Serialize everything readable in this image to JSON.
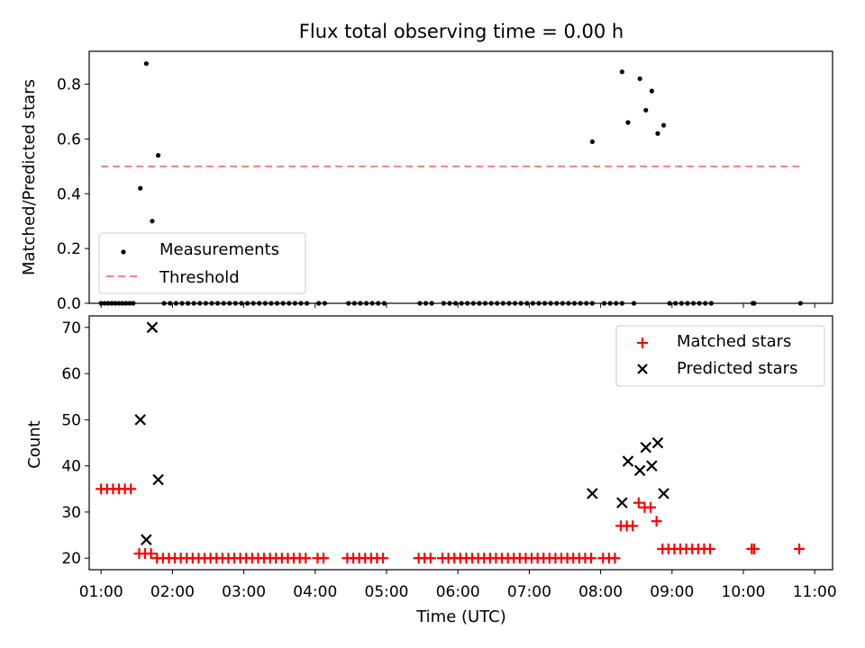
{
  "title": "Flux total observing time = 0.00 h",
  "chart_data": [
    {
      "type": "scatter",
      "ylabel": "Matched/Predicted stars",
      "xlim": [
        "00:50",
        "11:15"
      ],
      "ylim": [
        0,
        0.92
      ],
      "yticks": [
        0.0,
        0.2,
        0.4,
        0.6,
        0.8
      ],
      "ytick_labels": [
        "0.0",
        "0.2",
        "0.4",
        "0.6",
        "0.8"
      ],
      "legend_position": "lower-left",
      "series": [
        {
          "name": "Measurements",
          "marker": "dot",
          "color": "#000000",
          "points": [
            [
              "01:00",
              0
            ],
            [
              "01:03",
              0
            ],
            [
              "01:06",
              0
            ],
            [
              "01:09",
              0
            ],
            [
              "01:12",
              0
            ],
            [
              "01:15",
              0
            ],
            [
              "01:18",
              0
            ],
            [
              "01:21",
              0
            ],
            [
              "01:24",
              0
            ],
            [
              "01:27",
              0
            ],
            [
              "01:33",
              0.42
            ],
            [
              "01:38",
              0.875
            ],
            [
              "01:43",
              0.3
            ],
            [
              "01:48",
              0.54
            ],
            [
              "01:53",
              0
            ],
            [
              "01:58",
              0
            ],
            [
              "02:03",
              0
            ],
            [
              "02:08",
              0
            ],
            [
              "02:13",
              0
            ],
            [
              "02:18",
              0
            ],
            [
              "02:23",
              0
            ],
            [
              "02:28",
              0
            ],
            [
              "02:33",
              0
            ],
            [
              "02:38",
              0
            ],
            [
              "02:43",
              0
            ],
            [
              "02:48",
              0
            ],
            [
              "02:53",
              0
            ],
            [
              "02:58",
              0
            ],
            [
              "03:03",
              0
            ],
            [
              "03:08",
              0
            ],
            [
              "03:13",
              0
            ],
            [
              "03:18",
              0
            ],
            [
              "03:23",
              0
            ],
            [
              "03:28",
              0
            ],
            [
              "03:33",
              0
            ],
            [
              "03:38",
              0
            ],
            [
              "03:43",
              0
            ],
            [
              "03:48",
              0
            ],
            [
              "03:53",
              0
            ],
            [
              "04:03",
              0
            ],
            [
              "04:08",
              0
            ],
            [
              "04:28",
              0
            ],
            [
              "04:33",
              0
            ],
            [
              "04:38",
              0
            ],
            [
              "04:43",
              0
            ],
            [
              "04:48",
              0
            ],
            [
              "04:53",
              0
            ],
            [
              "04:58",
              0
            ],
            [
              "05:28",
              0
            ],
            [
              "05:33",
              0
            ],
            [
              "05:38",
              0
            ],
            [
              "05:48",
              0
            ],
            [
              "05:53",
              0
            ],
            [
              "05:58",
              0
            ],
            [
              "06:03",
              0
            ],
            [
              "06:08",
              0
            ],
            [
              "06:13",
              0
            ],
            [
              "06:18",
              0
            ],
            [
              "06:23",
              0
            ],
            [
              "06:28",
              0
            ],
            [
              "06:33",
              0
            ],
            [
              "06:38",
              0
            ],
            [
              "06:43",
              0
            ],
            [
              "06:48",
              0
            ],
            [
              "06:53",
              0
            ],
            [
              "06:58",
              0
            ],
            [
              "07:03",
              0
            ],
            [
              "07:08",
              0
            ],
            [
              "07:13",
              0
            ],
            [
              "07:18",
              0
            ],
            [
              "07:23",
              0
            ],
            [
              "07:28",
              0
            ],
            [
              "07:33",
              0
            ],
            [
              "07:38",
              0
            ],
            [
              "07:43",
              0
            ],
            [
              "07:48",
              0
            ],
            [
              "07:53",
              0
            ],
            [
              "08:03",
              0
            ],
            [
              "08:08",
              0
            ],
            [
              "08:13",
              0
            ],
            [
              "08:18",
              0
            ],
            [
              "07:53",
              0.59
            ],
            [
              "08:18",
              0.845
            ],
            [
              "08:23",
              0.66
            ],
            [
              "08:28",
              0
            ],
            [
              "08:33",
              0.82
            ],
            [
              "08:38",
              0.705
            ],
            [
              "08:43",
              0.775
            ],
            [
              "08:48",
              0.62
            ],
            [
              "08:53",
              0.65
            ],
            [
              "08:58",
              0
            ],
            [
              "09:03",
              0
            ],
            [
              "09:08",
              0
            ],
            [
              "09:13",
              0
            ],
            [
              "09:18",
              0
            ],
            [
              "09:23",
              0
            ],
            [
              "09:28",
              0
            ],
            [
              "09:33",
              0
            ],
            [
              "10:08",
              0
            ],
            [
              "10:09",
              0
            ],
            [
              "10:48",
              0
            ]
          ]
        },
        {
          "name": "Threshold",
          "marker": "dashed-line",
          "color": "#ff7f7f",
          "x": [
            "01:00",
            "10:48"
          ],
          "y": [
            0.5,
            0.5
          ]
        }
      ]
    },
    {
      "type": "scatter",
      "xlabel": "Time (UTC)",
      "ylabel": "Count",
      "xlim": [
        "00:50",
        "11:15"
      ],
      "ylim": [
        17.5,
        72.5
      ],
      "xticks": [
        "01:00",
        "02:00",
        "03:00",
        "04:00",
        "05:00",
        "06:00",
        "07:00",
        "08:00",
        "09:00",
        "10:00",
        "11:00"
      ],
      "yticks": [
        20,
        30,
        40,
        50,
        60,
        70
      ],
      "ytick_labels": [
        "20",
        "30",
        "40",
        "50",
        "60",
        "70"
      ],
      "legend_position": "upper-right",
      "series": [
        {
          "name": "Matched stars",
          "marker": "plus",
          "color": "#ff0000",
          "points": [
            [
              "01:00",
              35
            ],
            [
              "01:05",
              35
            ],
            [
              "01:10",
              35
            ],
            [
              "01:15",
              35
            ],
            [
              "01:20",
              35
            ],
            [
              "01:25",
              35
            ],
            [
              "01:32",
              21
            ],
            [
              "01:37",
              21
            ],
            [
              "01:42",
              21
            ],
            [
              "01:47",
              20
            ],
            [
              "01:52",
              20
            ],
            [
              "01:57",
              20
            ],
            [
              "02:02",
              20
            ],
            [
              "02:07",
              20
            ],
            [
              "02:12",
              20
            ],
            [
              "02:17",
              20
            ],
            [
              "02:22",
              20
            ],
            [
              "02:27",
              20
            ],
            [
              "02:32",
              20
            ],
            [
              "02:37",
              20
            ],
            [
              "02:42",
              20
            ],
            [
              "02:47",
              20
            ],
            [
              "02:52",
              20
            ],
            [
              "02:57",
              20
            ],
            [
              "03:02",
              20
            ],
            [
              "03:07",
              20
            ],
            [
              "03:12",
              20
            ],
            [
              "03:17",
              20
            ],
            [
              "03:22",
              20
            ],
            [
              "03:27",
              20
            ],
            [
              "03:32",
              20
            ],
            [
              "03:37",
              20
            ],
            [
              "03:42",
              20
            ],
            [
              "03:47",
              20
            ],
            [
              "03:52",
              20
            ],
            [
              "04:02",
              20
            ],
            [
              "04:07",
              20
            ],
            [
              "04:27",
              20
            ],
            [
              "04:32",
              20
            ],
            [
              "04:37",
              20
            ],
            [
              "04:42",
              20
            ],
            [
              "04:47",
              20
            ],
            [
              "04:52",
              20
            ],
            [
              "04:57",
              20
            ],
            [
              "05:27",
              20
            ],
            [
              "05:32",
              20
            ],
            [
              "05:37",
              20
            ],
            [
              "05:47",
              20
            ],
            [
              "05:52",
              20
            ],
            [
              "05:57",
              20
            ],
            [
              "06:02",
              20
            ],
            [
              "06:07",
              20
            ],
            [
              "06:12",
              20
            ],
            [
              "06:17",
              20
            ],
            [
              "06:22",
              20
            ],
            [
              "06:27",
              20
            ],
            [
              "06:32",
              20
            ],
            [
              "06:37",
              20
            ],
            [
              "06:42",
              20
            ],
            [
              "06:47",
              20
            ],
            [
              "06:52",
              20
            ],
            [
              "06:57",
              20
            ],
            [
              "07:02",
              20
            ],
            [
              "07:07",
              20
            ],
            [
              "07:12",
              20
            ],
            [
              "07:17",
              20
            ],
            [
              "07:22",
              20
            ],
            [
              "07:27",
              20
            ],
            [
              "07:32",
              20
            ],
            [
              "07:37",
              20
            ],
            [
              "07:42",
              20
            ],
            [
              "07:47",
              20
            ],
            [
              "07:52",
              20
            ],
            [
              "08:02",
              20
            ],
            [
              "08:07",
              20
            ],
            [
              "08:12",
              20
            ],
            [
              "08:17",
              27
            ],
            [
              "08:22",
              27
            ],
            [
              "08:27",
              27
            ],
            [
              "08:32",
              32
            ],
            [
              "08:37",
              31
            ],
            [
              "08:42",
              31
            ],
            [
              "08:47",
              28
            ],
            [
              "08:52",
              22
            ],
            [
              "08:57",
              22
            ],
            [
              "09:02",
              22
            ],
            [
              "09:07",
              22
            ],
            [
              "09:12",
              22
            ],
            [
              "09:17",
              22
            ],
            [
              "09:22",
              22
            ],
            [
              "09:27",
              22
            ],
            [
              "09:32",
              22
            ],
            [
              "10:07",
              22
            ],
            [
              "10:09",
              22
            ],
            [
              "10:47",
              22
            ]
          ]
        },
        {
          "name": "Predicted stars",
          "marker": "x",
          "color": "#000000",
          "points": [
            [
              "01:33",
              50
            ],
            [
              "01:38",
              24
            ],
            [
              "01:43",
              70
            ],
            [
              "01:48",
              37
            ],
            [
              "07:53",
              34
            ],
            [
              "08:18",
              32
            ],
            [
              "08:23",
              41
            ],
            [
              "08:33",
              39
            ],
            [
              "08:38",
              44
            ],
            [
              "08:43",
              40
            ],
            [
              "08:48",
              45
            ],
            [
              "08:53",
              34
            ]
          ]
        }
      ]
    }
  ]
}
